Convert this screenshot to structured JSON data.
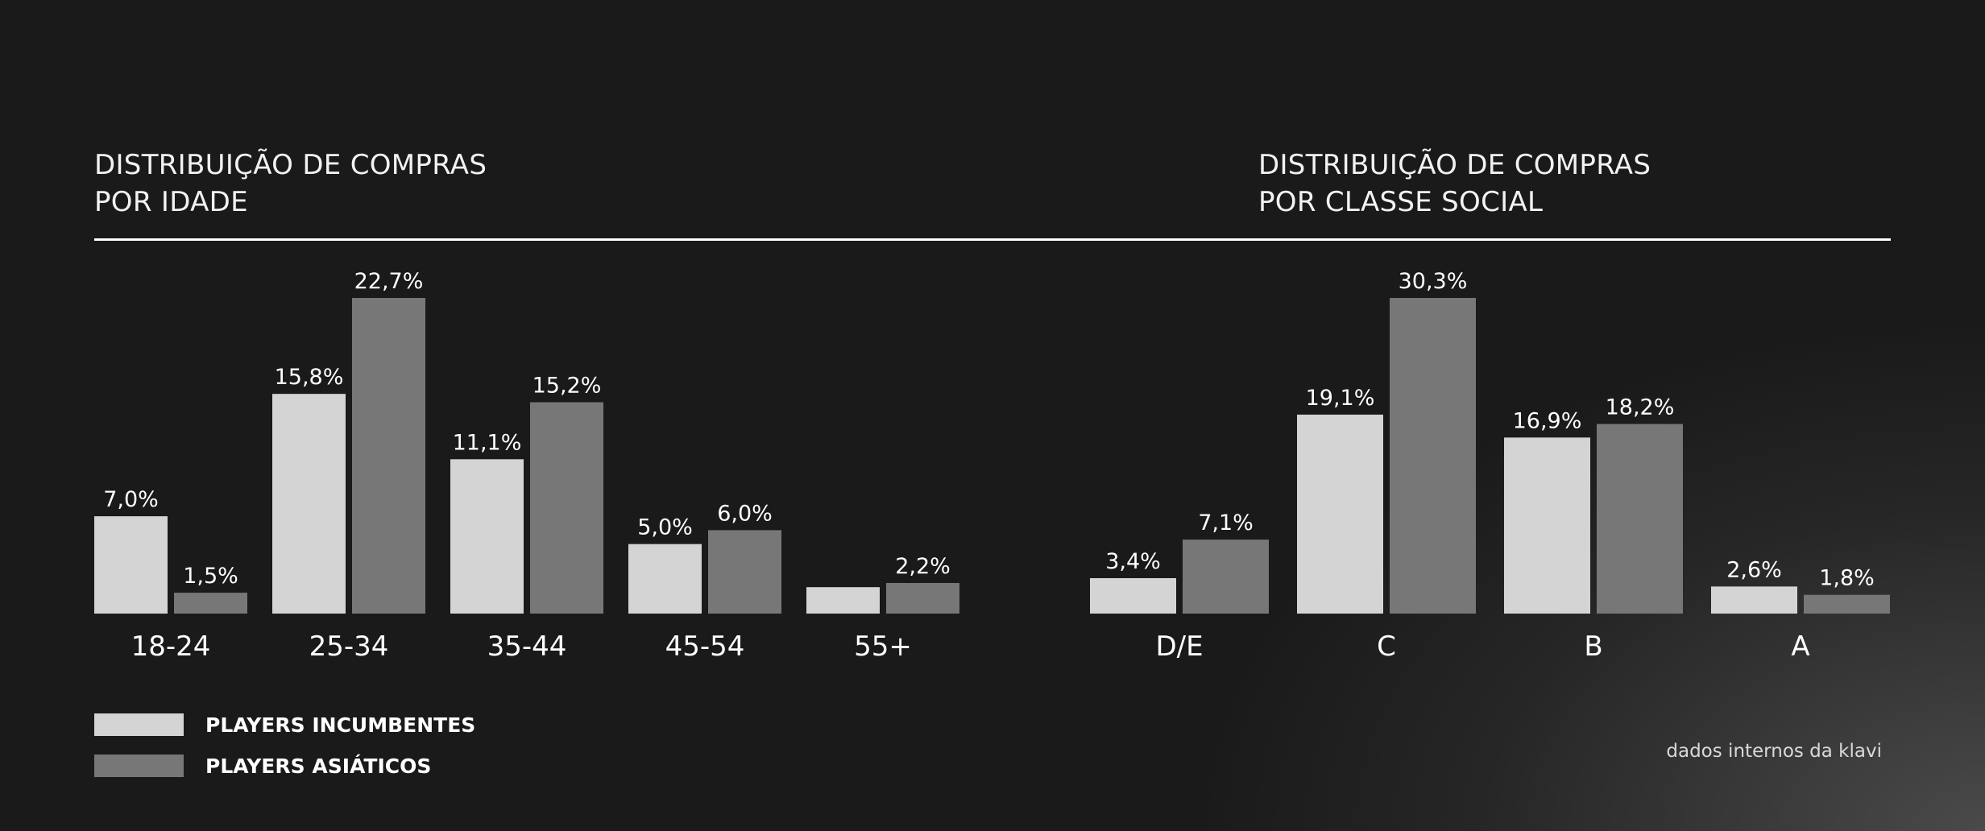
{
  "colors": {
    "background": "#1a1a1a",
    "series_incumbentes": "#d4d4d4",
    "series_asiaticos": "#777777",
    "text": "#ffffff"
  },
  "legend": {
    "items": [
      {
        "label": "PLAYERS INCUMBENTES",
        "color": "#d4d4d4"
      },
      {
        "label": "PLAYERS ASIÁTICOS",
        "color": "#777777"
      }
    ]
  },
  "footer": {
    "source": "dados internos da klavi"
  },
  "chart_data": [
    {
      "type": "bar",
      "title_lines": [
        "DISTRIBUIÇÃO DE COMPRAS",
        "POR IDADE"
      ],
      "categories": [
        "18-24",
        "25-34",
        "35-44",
        "45-54",
        "55+"
      ],
      "series": [
        {
          "name": "PLAYERS INCUMBENTES",
          "values": [
            7.0,
            15.8,
            11.1,
            5.0,
            1.9
          ],
          "labels": [
            "7,0%",
            "15,8%",
            "11,1%",
            "5,0%",
            ""
          ]
        },
        {
          "name": "PLAYERS ASIÁTICOS",
          "values": [
            1.5,
            22.7,
            15.2,
            6.0,
            2.2
          ],
          "labels": [
            "1,5%",
            "22,7%",
            "15,2%",
            "6,0%",
            "2,2%"
          ]
        }
      ],
      "unit": "%",
      "ylim": [
        0,
        22.7
      ],
      "grid": false,
      "legend_position": "bottom-left"
    },
    {
      "type": "bar",
      "title_lines": [
        "DISTRIBUIÇÃO DE COMPRAS",
        "POR CLASSE SOCIAL"
      ],
      "categories": [
        "D/E",
        "C",
        "B",
        "A"
      ],
      "series": [
        {
          "name": "PLAYERS INCUMBENTES",
          "values": [
            3.4,
            19.1,
            16.9,
            2.6
          ],
          "labels": [
            "3,4%",
            "19,1%",
            "16,9%",
            "2,6%"
          ]
        },
        {
          "name": "PLAYERS ASIÁTICOS",
          "values": [
            7.1,
            30.3,
            18.2,
            1.8
          ],
          "labels": [
            "7,1%",
            "30,3%",
            "18,2%",
            "1,8%"
          ]
        }
      ],
      "unit": "%",
      "ylim": [
        0,
        30.3
      ],
      "grid": false,
      "legend_position": "bottom-left"
    }
  ]
}
